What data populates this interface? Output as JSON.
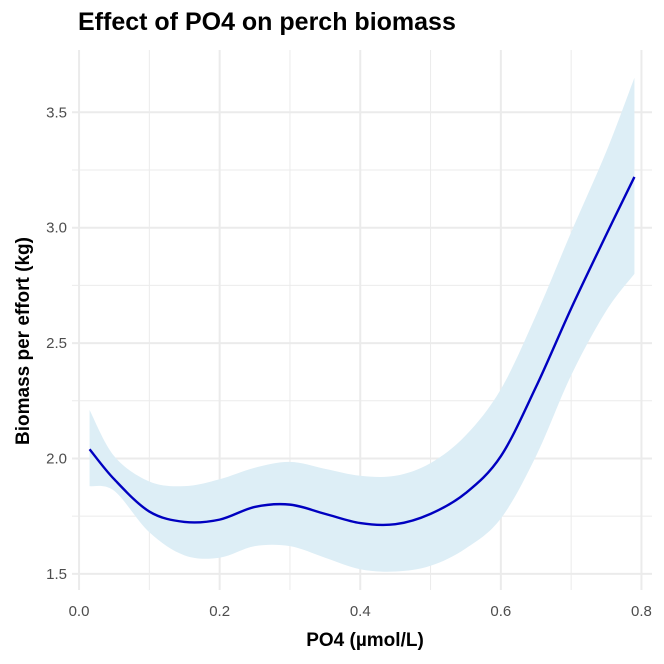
{
  "chart_data": {
    "type": "line",
    "title": "Effect of PO4 on perch biomass",
    "xlabel": "PO4 (µmol/L)",
    "ylabel": "Biomass per effort (kg)",
    "xlim": [
      -0.01,
      0.815
    ],
    "ylim": [
      1.43,
      3.77
    ],
    "x_ticks": [
      0.0,
      0.2,
      0.4,
      0.6,
      0.8
    ],
    "x_tick_labels": [
      "0.0",
      "0.2",
      "0.4",
      "0.6",
      "0.8"
    ],
    "y_ticks": [
      1.5,
      2.0,
      2.5,
      3.0,
      3.5
    ],
    "y_tick_labels": [
      "1.5",
      "2.0",
      "2.5",
      "3.0",
      "3.5"
    ],
    "grid": true,
    "legend": "none",
    "series": [
      {
        "x": [
          0.015,
          0.05,
          0.1,
          0.15,
          0.2,
          0.25,
          0.3,
          0.35,
          0.4,
          0.45,
          0.5,
          0.55,
          0.6,
          0.65,
          0.7,
          0.75,
          0.79
        ],
        "y": [
          2.04,
          1.91,
          1.77,
          1.725,
          1.735,
          1.79,
          1.8,
          1.76,
          1.72,
          1.715,
          1.76,
          1.85,
          2.01,
          2.31,
          2.65,
          2.97,
          3.22
        ],
        "lower": [
          1.88,
          1.86,
          1.68,
          1.58,
          1.57,
          1.62,
          1.62,
          1.57,
          1.52,
          1.51,
          1.535,
          1.61,
          1.74,
          2.01,
          2.36,
          2.64,
          2.8
        ],
        "upper": [
          2.21,
          2.01,
          1.9,
          1.88,
          1.91,
          1.96,
          1.985,
          1.955,
          1.925,
          1.925,
          1.98,
          2.1,
          2.3,
          2.62,
          2.98,
          3.33,
          3.65
        ]
      }
    ],
    "colors": {
      "line": "#0000c0",
      "band": "#ddeef6",
      "grid": "#ebebeb",
      "tick_text": "#4d4d4d"
    }
  }
}
